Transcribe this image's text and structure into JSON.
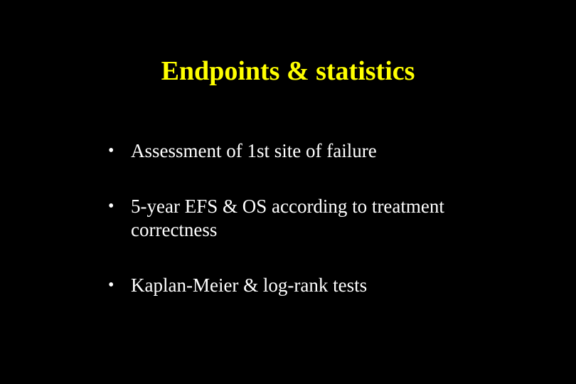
{
  "slide": {
    "title": "Endpoints & statistics",
    "title_color": "#ffff00",
    "title_fontsize": 38,
    "title_fontweight": "bold",
    "background_color": "#000000",
    "body_text_color": "#ffffff",
    "body_fontsize": 27,
    "font_family": "Times New Roman",
    "bullets": [
      {
        "marker": "•",
        "text": "Assessment of 1st site of failure"
      },
      {
        "marker": "•",
        "text": "5-year EFS & OS according to treatment correctness"
      },
      {
        "marker": "•",
        "text": "Kaplan-Meier & log-rank tests"
      }
    ]
  }
}
